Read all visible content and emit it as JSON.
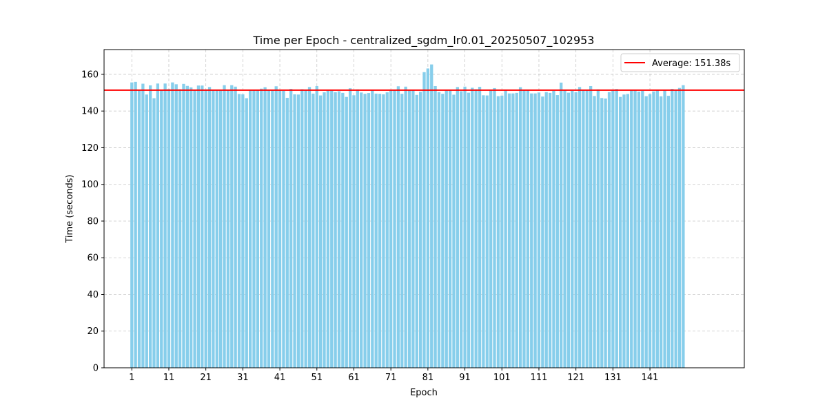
{
  "chart_data": {
    "type": "bar",
    "title": "Time per Epoch - centralized_sgdm_lr0.01_20250507_102953",
    "xlabel": "Epoch",
    "ylabel": "Time (seconds)",
    "xlim": [
      -6.5,
      166.5
    ],
    "ylim": [
      0,
      173.5
    ],
    "x_ticks": [
      1,
      11,
      21,
      31,
      41,
      51,
      61,
      71,
      81,
      91,
      101,
      111,
      121,
      131,
      141
    ],
    "y_ticks": [
      0,
      20,
      40,
      60,
      80,
      100,
      120,
      140,
      160
    ],
    "grid": true,
    "bar_color": "#87CEEB",
    "average": {
      "value": 151.38,
      "label": "Average: 151.38s",
      "color": "#ff0000"
    },
    "legend_position": "top-right",
    "series": [
      {
        "values": [
          155.6,
          155.9,
          151.5,
          154.9,
          149.0,
          154.0,
          147.0,
          155.0,
          151.5,
          155.0,
          152.0,
          155.6,
          154.6,
          151.9,
          154.8,
          153.7,
          152.9,
          151.3,
          153.9,
          153.9,
          151.8,
          153.1,
          151.5,
          151.5,
          151.5,
          154.1,
          151.3,
          154.1,
          153.3,
          149.3,
          149.1,
          147.0,
          151.4,
          151.5,
          151.5,
          152.2,
          153.0,
          151.3,
          151.5,
          153.5,
          151.7,
          151.0,
          147.2,
          152.1,
          149.1,
          149.0,
          151.9,
          151.3,
          153.1,
          149.5,
          153.6,
          148.5,
          150.2,
          151.1,
          151.1,
          150.3,
          150.8,
          149.9,
          147.7,
          152.4,
          148.6,
          151.8,
          150.1,
          149.4,
          149.8,
          151.2,
          149.5,
          149.4,
          149.1,
          150.2,
          151.2,
          151.3,
          153.5,
          149.4,
          153.3,
          151.2,
          151.6,
          148.8,
          150.5,
          161.2,
          163.2,
          165.4,
          153.6,
          150.3,
          149.4,
          151.5,
          151.5,
          148.9,
          153.1,
          150.8,
          153.3,
          150.0,
          152.7,
          151.9,
          153.2,
          148.6,
          148.5,
          151.3,
          152.5,
          148.1,
          148.4,
          151.5,
          149.6,
          149.6,
          149.9,
          153.0,
          151.5,
          151.6,
          149.6,
          149.6,
          150.1,
          147.9,
          150.3,
          149.9,
          151.0,
          148.7,
          155.5,
          151.5,
          150.0,
          151.0,
          150.3,
          153.1,
          151.5,
          151.4,
          153.6,
          148.2,
          151.8,
          147.1,
          146.8,
          150.3,
          151.4,
          152.0,
          147.7,
          149.0,
          149.3,
          151.6,
          151.5,
          150.6,
          151.0,
          148.1,
          149.2,
          150.7,
          151.6,
          148.0,
          151.6,
          148.3,
          152.1,
          151.6,
          152.6,
          154.1
        ]
      }
    ]
  }
}
